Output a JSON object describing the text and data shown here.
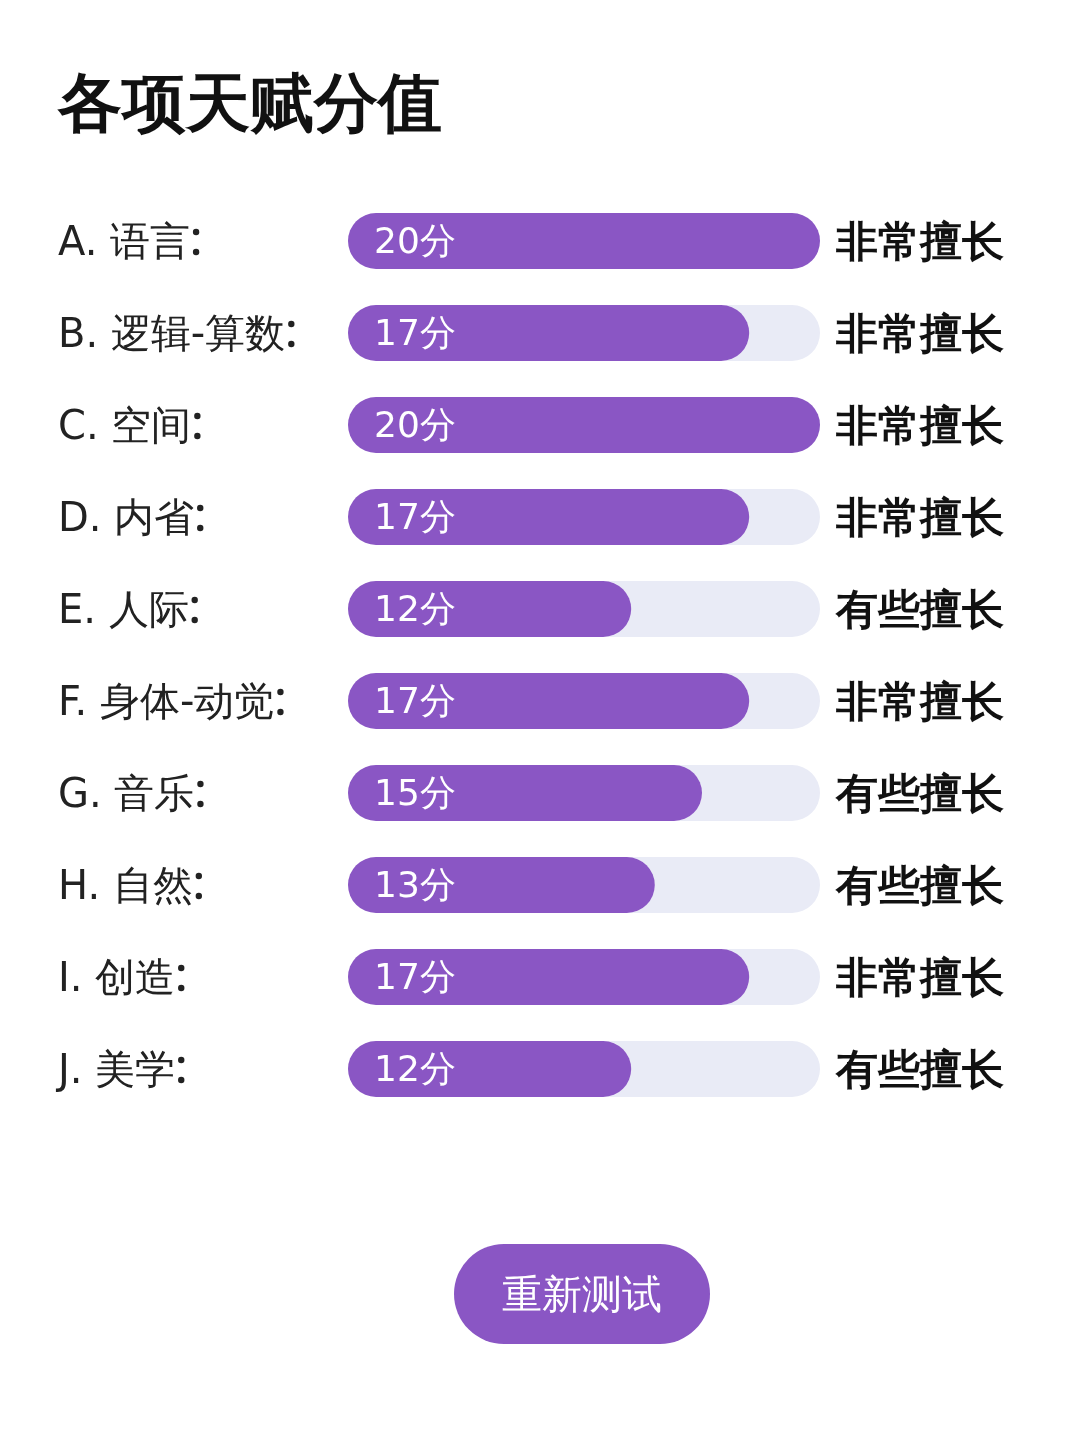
{
  "chart_data": {
    "type": "bar",
    "orientation": "horizontal",
    "title": "各项天赋分值",
    "categories": [
      "A.  语言",
      "B.  逻辑-算数",
      "C.  空间",
      "D.  内省",
      "E.  人际",
      "F.  身体-动觉",
      "G.  音乐",
      "H.  自然",
      "I.  创造",
      "J.  美学"
    ],
    "values": [
      20,
      17,
      20,
      17,
      12,
      17,
      15,
      13,
      17,
      12
    ],
    "value_labels": [
      "20分",
      "17分",
      "20分",
      "17分",
      "12分",
      "17分",
      "15分",
      "13分",
      "17分",
      "12分"
    ],
    "color": "#8a56c4",
    "xlim": [
      0,
      20
    ],
    "annotations": [
      "非常擅长",
      "非常擅长",
      "非常擅长",
      "非常擅长",
      "有些擅长",
      "非常擅长",
      "有些擅长",
      "有些擅长",
      "非常擅长",
      "有些擅长",
      "重新测试"
    ]
  }
}
